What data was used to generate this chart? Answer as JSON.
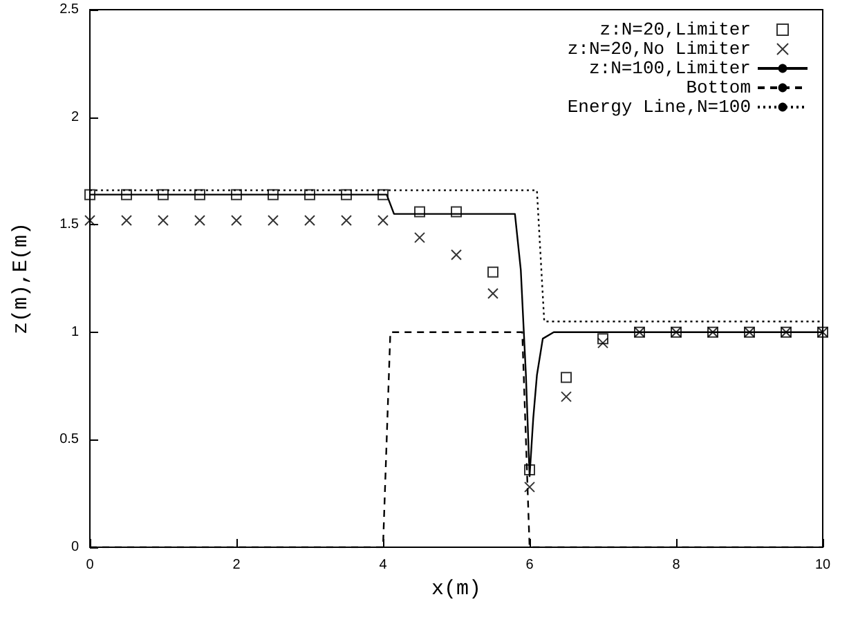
{
  "chart_data": {
    "type": "line",
    "xlabel": "x(m)",
    "ylabel": "z(m),E(m)",
    "xlim": [
      0,
      10
    ],
    "xticks": [
      0,
      2,
      4,
      6,
      8,
      10
    ],
    "ylim": [
      0,
      2.5
    ],
    "yticks": [
      0,
      0.5,
      1,
      1.5,
      2,
      2.5
    ],
    "grid": false,
    "legend": "top right",
    "series": [
      {
        "name": "z:N=20,Limiter",
        "type": "scatter",
        "marker": "square",
        "color": "#000000",
        "x": [
          0,
          0.5,
          1,
          1.5,
          2,
          2.5,
          3,
          3.5,
          4,
          4.5,
          5,
          5.5,
          6,
          6.5,
          7,
          7.5,
          8,
          8.5,
          9,
          9.5,
          10
        ],
        "values": [
          1.64,
          1.64,
          1.64,
          1.64,
          1.64,
          1.64,
          1.64,
          1.64,
          1.64,
          1.56,
          1.56,
          1.28,
          0.36,
          0.79,
          0.97,
          1,
          1,
          1,
          1,
          1,
          1
        ]
      },
      {
        "name": "z:N=20,No Limiter",
        "type": "scatter",
        "marker": "cross",
        "color": "#000000",
        "x": [
          0,
          0.5,
          1,
          1.5,
          2,
          2.5,
          3,
          3.5,
          4,
          4.5,
          5,
          5.5,
          6,
          6.5,
          7,
          7.5,
          8,
          8.5,
          9,
          9.5,
          10
        ],
        "values": [
          1.52,
          1.52,
          1.52,
          1.52,
          1.52,
          1.52,
          1.52,
          1.52,
          1.52,
          1.44,
          1.36,
          1.18,
          0.28,
          0.7,
          0.95,
          1,
          1,
          1,
          1,
          1,
          1
        ]
      },
      {
        "name": "z:N=100,Limiter",
        "type": "line",
        "line_style": "solid",
        "color": "#000000",
        "x": [
          0,
          4.05,
          4.15,
          5.8,
          5.88,
          5.95,
          6,
          6.05,
          6.1,
          6.18,
          6.33,
          10
        ],
        "values": [
          1.64,
          1.64,
          1.55,
          1.55,
          1.29,
          0.8,
          0.33,
          0.6,
          0.8,
          0.97,
          1,
          1
        ]
      },
      {
        "name": "Bottom",
        "type": "line",
        "line_style": "dashed",
        "color": "#000000",
        "x": [
          0,
          4,
          4.1,
          5.9,
          6,
          10
        ],
        "values": [
          0,
          0,
          1,
          1,
          0,
          0
        ]
      },
      {
        "name": "Energy Line,N=100",
        "type": "line",
        "line_style": "dotted",
        "color": "#000000",
        "x": [
          0,
          6.1,
          6.2,
          10
        ],
        "values": [
          1.66,
          1.66,
          1.05,
          1.05
        ]
      }
    ]
  }
}
